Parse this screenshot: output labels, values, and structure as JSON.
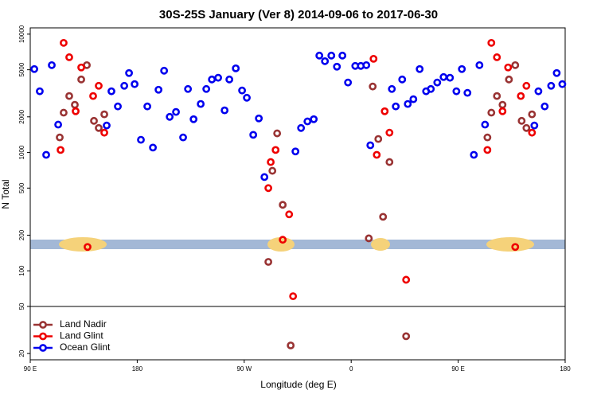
{
  "chart_data": {
    "type": "scatter",
    "title": "30S-25S January (Ver 8)   2014-09-06 to 2017-06-30",
    "x_label": "Longitude (deg E)",
    "y_label": "N Total",
    "log_y": true,
    "legend": "lower left",
    "xlim": [
      90,
      540
    ],
    "xticks": [
      {
        "value": 90,
        "label": "90 E"
      },
      {
        "value": 180,
        "label": "180"
      },
      {
        "value": 270,
        "label": "90 W"
      },
      {
        "value": 360,
        "label": "0"
      },
      {
        "value": 450,
        "label": "90 E"
      },
      {
        "value": 540,
        "label": "180"
      }
    ],
    "ylim": [
      17.7,
      11300
    ],
    "yticks": [
      20,
      50,
      100,
      200,
      500,
      1000,
      2000,
      5000,
      10000
    ],
    "series": [
      {
        "name": "Land Nadir",
        "color": "#993333",
        "x": [
          118.1,
          122.8,
          127.5,
          132.9,
          137.6,
          143.6,
          147.6,
          152.3,
          114.8,
          290.3,
          293.7,
          297.7,
          302.4,
          309.1,
          374.8,
          378.1,
          382.8,
          386.8,
          392.2,
          406.2,
          474.6,
          477.9,
          482.6,
          487.3,
          492.7,
          498,
          503.4,
          507.4,
          512.1
        ],
        "values": [
          2170,
          3000,
          2530,
          4140,
          5470,
          1850,
          1610,
          2100,
          1340,
          119,
          700,
          1450,
          361,
          23.4,
          188,
          3610,
          1300,
          286,
          830,
          28,
          1340,
          2170,
          3000,
          2530,
          4140,
          5470,
          1850,
          1610,
          2100
        ]
      },
      {
        "name": "Land Glint",
        "color": "#ee0000",
        "x": [
          118.1,
          122.8,
          115.5,
          128.2,
          132.9,
          142.9,
          147.6,
          152.3,
          138.2,
          290.3,
          292.3,
          296.4,
          307.8,
          302.4,
          311.1,
          378.8,
          381.5,
          388.2,
          392.2,
          406.2,
          477.9,
          482.6,
          474.6,
          487.3,
          492,
          502.7,
          507.4,
          512.1,
          498
        ],
        "values": [
          8440,
          6380,
          1050,
          2230,
          5230,
          3000,
          3660,
          1470,
          159,
          500,
          830,
          1050,
          300,
          183,
          61,
          6190,
          955,
          2230,
          1470,
          84,
          8440,
          6380,
          1050,
          2230,
          5230,
          3000,
          3660,
          1470,
          159
        ]
      },
      {
        "name": "Ocean Glint",
        "color": "#0000ee",
        "x": [
          93.4,
          98,
          103.4,
          108.1,
          113.5,
          154.3,
          158.3,
          163.7,
          169.1,
          173.1,
          177.8,
          183.1,
          188.5,
          193.2,
          197.9,
          202.6,
          207.3,
          212.6,
          218.6,
          222.7,
          227.4,
          233.4,
          238.1,
          242.8,
          248.1,
          253.5,
          257.5,
          262.9,
          268.2,
          272.2,
          277.6,
          282.3,
          287,
          313.1,
          317.8,
          323.2,
          328.5,
          333.2,
          337.9,
          343.3,
          348,
          352.6,
          357.3,
          363.4,
          368.1,
          372.7,
          376.1,
          394.2,
          397.5,
          402.9,
          407.6,
          412.3,
          417.6,
          423,
          427,
          432.4,
          437.7,
          443.1,
          448.5,
          453.1,
          457.8,
          463.2,
          467.9,
          472.6,
          514.1,
          517.5,
          522.8,
          528.2,
          532.9,
          537.6
        ],
        "values": [
          5070,
          3290,
          955,
          5470,
          1720,
          1690,
          3290,
          2450,
          3660,
          4690,
          3780,
          1280,
          2450,
          1100,
          3390,
          4910,
          2000,
          2200,
          1340,
          3440,
          1910,
          2570,
          3440,
          4140,
          4280,
          2270,
          4140,
          5140,
          3340,
          2900,
          1410,
          1940,
          620,
          1020,
          1610,
          1830,
          1910,
          6590,
          5910,
          6590,
          5310,
          6590,
          3900,
          5390,
          5390,
          5470,
          1150,
          3440,
          2450,
          4140,
          2570,
          2820,
          5070,
          3290,
          3440,
          3900,
          4340,
          4280,
          3290,
          5070,
          3190,
          955,
          5470,
          1720,
          1690,
          3290,
          2450,
          3660,
          4690,
          3780
        ]
      }
    ]
  }
}
